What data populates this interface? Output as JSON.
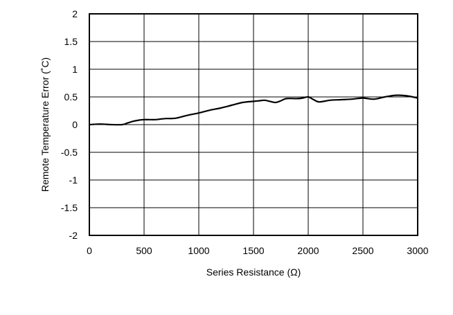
{
  "chart_data": {
    "type": "line",
    "title": "",
    "xlabel": "Series Resistance (Ω)",
    "ylabel": "Remote Temperature Error (˚C)",
    "xlim": [
      0,
      3000
    ],
    "ylim": [
      -2,
      2
    ],
    "x_ticks": [
      "0",
      "500",
      "1000",
      "1500",
      "2000",
      "2500",
      "3000"
    ],
    "y_ticks": [
      "2",
      "1.5",
      "1",
      "0.5",
      "0",
      "-0.5",
      "-1",
      "-1.5",
      "-2"
    ],
    "grid": true,
    "series": [
      {
        "x": [
          0,
          100,
          200,
          300,
          350,
          400,
          450,
          500,
          550,
          600,
          650,
          700,
          750,
          800,
          900,
          1000,
          1100,
          1200,
          1300,
          1400,
          1500,
          1550,
          1600,
          1650,
          1700,
          1750,
          1800,
          1900,
          1950,
          2000,
          2050,
          2100,
          2200,
          2300,
          2400,
          2500,
          2600,
          2700,
          2800,
          2900,
          3000
        ],
        "y": [
          0.0,
          0.01,
          0.0,
          0.0,
          0.03,
          0.06,
          0.08,
          0.09,
          0.09,
          0.09,
          0.1,
          0.11,
          0.11,
          0.12,
          0.17,
          0.21,
          0.26,
          0.3,
          0.35,
          0.4,
          0.42,
          0.43,
          0.44,
          0.42,
          0.4,
          0.43,
          0.47,
          0.47,
          0.48,
          0.5,
          0.45,
          0.41,
          0.44,
          0.45,
          0.46,
          0.48,
          0.46,
          0.5,
          0.53,
          0.52,
          0.48
        ]
      }
    ]
  }
}
